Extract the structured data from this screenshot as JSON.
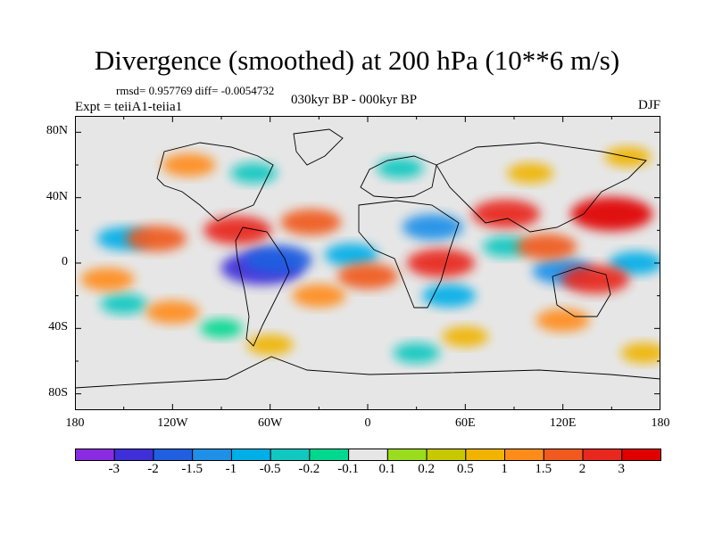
{
  "title": "Divergence (smoothed) at 200 hPa (10**6 m/s)",
  "stats": "rmsd= 0.957769 diff= -0.0054732",
  "experiment": "Expt = teiiA1-teiia1",
  "period": "030kyr BP - 000kyr BP",
  "season": "DJF",
  "axes": {
    "y_ticks": [
      "80N",
      "40N",
      "0",
      "40S",
      "80S"
    ],
    "y_values": [
      80,
      40,
      0,
      -40,
      -80
    ],
    "x_ticks": [
      "180",
      "120W",
      "60W",
      "0",
      "60E",
      "120E",
      "180"
    ],
    "x_values": [
      -180,
      -120,
      -60,
      0,
      60,
      120,
      180
    ]
  },
  "colorbar": {
    "labels": [
      "-3",
      "-2",
      "-1.5",
      "-1",
      "-0.5",
      "-0.2",
      "-0.1",
      "0.1",
      "0.2",
      "0.5",
      "1",
      "1.5",
      "2",
      "3"
    ],
    "colors": [
      "#8a2be2",
      "#3f2fd8",
      "#1f5fe0",
      "#1e90e8",
      "#00aee8",
      "#10c8c0",
      "#00d890",
      "#e6e6e6",
      "#99dd1e",
      "#c8c800",
      "#f0b400",
      "#ff8c1a",
      "#f05a1e",
      "#e8281e",
      "#e00000"
    ]
  },
  "features": [
    {
      "type": "cell",
      "lon": -65,
      "lat": -3,
      "value": -3.0
    },
    {
      "type": "cell",
      "lon": -55,
      "lat": 2,
      "value": -2.0
    },
    {
      "type": "cell",
      "lon": 40,
      "lat": 22,
      "value": -1.5
    },
    {
      "type": "cell",
      "lon": 120,
      "lat": -5,
      "value": -1.5
    },
    {
      "type": "cell",
      "lon": 165,
      "lat": 0,
      "value": -1.0
    },
    {
      "type": "cell",
      "lon": -150,
      "lat": 15,
      "value": -1.0
    },
    {
      "type": "cell",
      "lon": -10,
      "lat": 5,
      "value": -1.0
    },
    {
      "type": "cell",
      "lon": 50,
      "lat": -20,
      "value": -1.0
    },
    {
      "type": "cell",
      "lon": 20,
      "lat": 58,
      "value": -0.5
    },
    {
      "type": "cell",
      "lon": -70,
      "lat": 55,
      "value": -0.5
    },
    {
      "type": "cell",
      "lon": 85,
      "lat": 10,
      "value": -0.5
    },
    {
      "type": "cell",
      "lon": -150,
      "lat": -25,
      "value": -0.5
    },
    {
      "type": "cell",
      "lon": 30,
      "lat": -55,
      "value": -0.5
    },
    {
      "type": "cell",
      "lon": -90,
      "lat": -40,
      "value": -0.2
    },
    {
      "type": "cell",
      "lon": 150,
      "lat": 30,
      "value": 3.0
    },
    {
      "type": "cell",
      "lon": 85,
      "lat": 30,
      "value": 2.0
    },
    {
      "type": "cell",
      "lon": -80,
      "lat": 20,
      "value": 2.0
    },
    {
      "type": "cell",
      "lon": 45,
      "lat": 0,
      "value": 2.0
    },
    {
      "type": "cell",
      "lon": 140,
      "lat": -10,
      "value": 2.0
    },
    {
      "type": "cell",
      "lon": -130,
      "lat": 15,
      "value": 1.5
    },
    {
      "type": "cell",
      "lon": -35,
      "lat": 25,
      "value": 1.5
    },
    {
      "type": "cell",
      "lon": 0,
      "lat": -8,
      "value": 1.5
    },
    {
      "type": "cell",
      "lon": 110,
      "lat": 10,
      "value": 1.5
    },
    {
      "type": "cell",
      "lon": -110,
      "lat": 60,
      "value": 1.0
    },
    {
      "type": "cell",
      "lon": -160,
      "lat": -10,
      "value": 1.0
    },
    {
      "type": "cell",
      "lon": -120,
      "lat": -30,
      "value": 1.0
    },
    {
      "type": "cell",
      "lon": -30,
      "lat": -20,
      "value": 1.0
    },
    {
      "type": "cell",
      "lon": 120,
      "lat": -35,
      "value": 1.0
    },
    {
      "type": "cell",
      "lon": 100,
      "lat": 55,
      "value": 0.5
    },
    {
      "type": "cell",
      "lon": 160,
      "lat": 65,
      "value": 0.5
    },
    {
      "type": "cell",
      "lon": 60,
      "lat": -45,
      "value": 0.5
    },
    {
      "type": "cell",
      "lon": -60,
      "lat": -50,
      "value": 0.5
    },
    {
      "type": "cell",
      "lon": 170,
      "lat": -55,
      "value": 0.5
    }
  ]
}
